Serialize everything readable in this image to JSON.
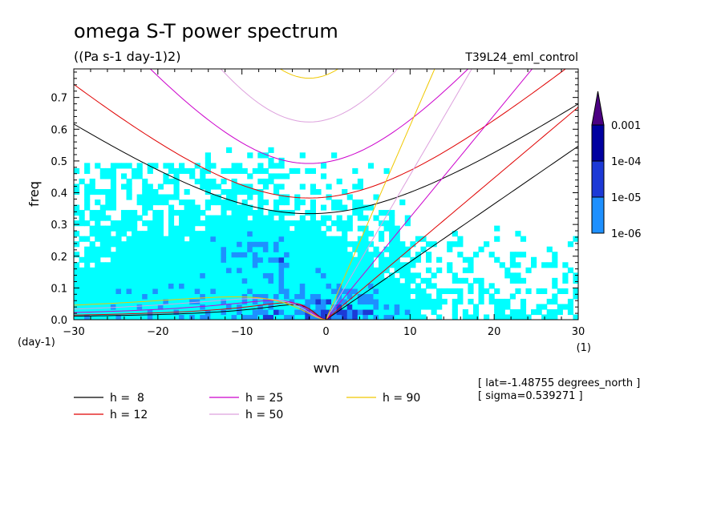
{
  "title": "omega S-T power spectrum",
  "units": "((Pa s-1 day-1)2)",
  "run_label": "T39L24_eml_control",
  "info": [
    "[ lat=-1.48755 degrees_north ]",
    "[ sigma=0.539271 ]"
  ],
  "colors": {
    "level1": "#00FFFF",
    "level2": "#1E90FF",
    "level3": "#1C39D6",
    "level4": "#0000A0",
    "level5": "#4B0082"
  },
  "chart_data": {
    "type": "heatmap",
    "xlabel": "wvn",
    "ylabel": "freq",
    "xunits": "(1)",
    "yunits": "(day-1)",
    "xlim": [
      -30,
      30
    ],
    "ylim": [
      0,
      0.79
    ],
    "xticks": [
      -30,
      -20,
      -10,
      0,
      10,
      20,
      30
    ],
    "xtick_labels": [
      "−30",
      "−20",
      "−10",
      "0",
      "10",
      "20",
      "30"
    ],
    "yticks": [
      0.0,
      0.1,
      0.2,
      0.3,
      0.4,
      0.5,
      0.6,
      0.7
    ],
    "ytick_labels": [
      "0.0",
      "0.1",
      "0.2",
      "0.3",
      "0.4",
      "0.5",
      "0.6",
      "0.7"
    ],
    "colorbar": {
      "levels": [
        "1e-06",
        "1e-05",
        "1e-04",
        "0.001"
      ],
      "extend": "max"
    },
    "dispersion_curves": [
      {
        "label": "h =  8",
        "h": 8,
        "color": "#000000"
      },
      {
        "label": "h = 12",
        "h": 12,
        "color": "#E00000"
      },
      {
        "label": "h = 25",
        "h": 25,
        "color": "#CC00CC"
      },
      {
        "label": "h = 50",
        "h": 50,
        "color": "#DDA0DD"
      },
      {
        "label": "h = 90",
        "h": 90,
        "color": "#F0C800"
      }
    ],
    "legend_position": "bottom"
  }
}
